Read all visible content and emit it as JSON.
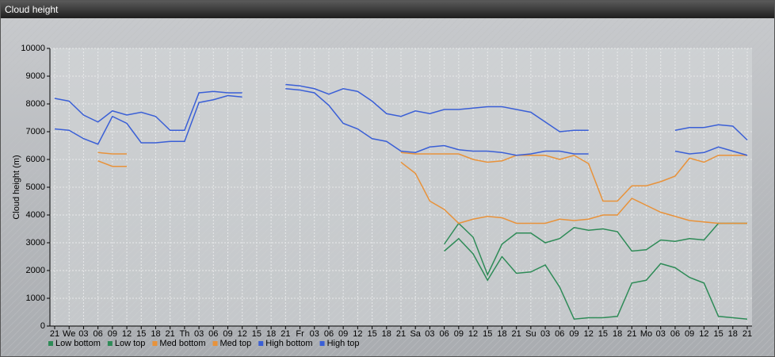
{
  "window_title": "Cloud height",
  "chart_data": {
    "type": "line",
    "y_label": "Cloud height (m)",
    "categories": [
      "21",
      "We",
      "03",
      "06",
      "09",
      "12",
      "15",
      "18",
      "21",
      "Th",
      "03",
      "06",
      "09",
      "12",
      "15",
      "18",
      "21",
      "Fr",
      "03",
      "06",
      "09",
      "12",
      "15",
      "18",
      "21",
      "Sa",
      "03",
      "06",
      "09",
      "12",
      "15",
      "18",
      "21",
      "Su",
      "03",
      "06",
      "09",
      "12",
      "15",
      "18",
      "21",
      "Mo",
      "03",
      "06",
      "09",
      "12",
      "15",
      "18",
      "21"
    ],
    "ylim": [
      0,
      10000
    ],
    "yticks": [
      0,
      1000,
      2000,
      3000,
      4000,
      5000,
      6000,
      7000,
      8000,
      9000,
      10000
    ],
    "grid": true,
    "series": [
      {
        "name": "Low bottom",
        "color": "#2e8b57",
        "values": [
          null,
          null,
          null,
          null,
          null,
          null,
          null,
          null,
          null,
          null,
          null,
          null,
          null,
          null,
          null,
          null,
          null,
          null,
          null,
          null,
          null,
          null,
          null,
          null,
          null,
          null,
          null,
          2700,
          3150,
          2600,
          1650,
          2500,
          1900,
          1950,
          2200,
          1400,
          250,
          300,
          300,
          350,
          1550,
          1650,
          2250,
          2100,
          1750,
          1550,
          350,
          300,
          250
        ]
      },
      {
        "name": "Low top",
        "color": "#2e8b57",
        "values": [
          null,
          null,
          null,
          null,
          null,
          null,
          null,
          null,
          null,
          null,
          null,
          null,
          null,
          null,
          null,
          null,
          null,
          null,
          null,
          null,
          null,
          null,
          null,
          null,
          null,
          null,
          null,
          2950,
          3700,
          3200,
          1850,
          2950,
          3350,
          3350,
          3000,
          3150,
          3550,
          3450,
          3500,
          3400,
          2700,
          2750,
          3100,
          3050,
          3150,
          3100,
          3700,
          3700,
          3700
        ]
      },
      {
        "name": "Med bottom",
        "color": "#e8923a",
        "values": [
          null,
          null,
          null,
          5950,
          5750,
          5750,
          null,
          null,
          null,
          null,
          null,
          null,
          null,
          null,
          null,
          null,
          null,
          null,
          null,
          null,
          null,
          null,
          null,
          null,
          5900,
          5500,
          4500,
          4200,
          3700,
          3850,
          3950,
          3900,
          3700,
          3700,
          3700,
          3850,
          3800,
          3850,
          4000,
          4000,
          4600,
          4350,
          4100,
          3950,
          3800,
          3750,
          3700,
          3700,
          3700
        ]
      },
      {
        "name": "Med top",
        "color": "#e8923a",
        "values": [
          null,
          null,
          null,
          6250,
          6200,
          6200,
          null,
          null,
          null,
          null,
          null,
          null,
          null,
          null,
          null,
          null,
          null,
          null,
          null,
          null,
          null,
          null,
          null,
          null,
          6250,
          6200,
          6200,
          6200,
          6200,
          6000,
          5900,
          5950,
          6150,
          6150,
          6150,
          6000,
          6150,
          5850,
          4500,
          4500,
          5050,
          5050,
          5200,
          5400,
          6050,
          5900,
          6150,
          6150,
          6150
        ]
      },
      {
        "name": "High bottom",
        "color": "#3a5fd6",
        "values": [
          7100,
          7050,
          6750,
          6550,
          7550,
          7300,
          6600,
          6600,
          6650,
          6650,
          8050,
          8150,
          8300,
          8250,
          null,
          null,
          8550,
          8500,
          8400,
          7950,
          7300,
          7100,
          6750,
          6650,
          6300,
          6250,
          6450,
          6500,
          6350,
          6300,
          6300,
          6250,
          6150,
          6200,
          6300,
          6300,
          6200,
          6200,
          null,
          null,
          null,
          null,
          null,
          6300,
          6200,
          6250,
          6450,
          6300,
          6150
        ]
      },
      {
        "name": "High top",
        "color": "#3a5fd6",
        "values": [
          8200,
          8100,
          7600,
          7350,
          7750,
          7600,
          7700,
          7550,
          7050,
          7050,
          8400,
          8450,
          8400,
          8400,
          null,
          null,
          8700,
          8650,
          8550,
          8350,
          8550,
          8450,
          8100,
          7650,
          7550,
          7750,
          7650,
          7800,
          7800,
          7850,
          7900,
          7900,
          7800,
          7700,
          7350,
          7000,
          7050,
          7050,
          null,
          null,
          null,
          null,
          null,
          7050,
          7150,
          7150,
          7250,
          7200,
          6700
        ]
      }
    ]
  }
}
